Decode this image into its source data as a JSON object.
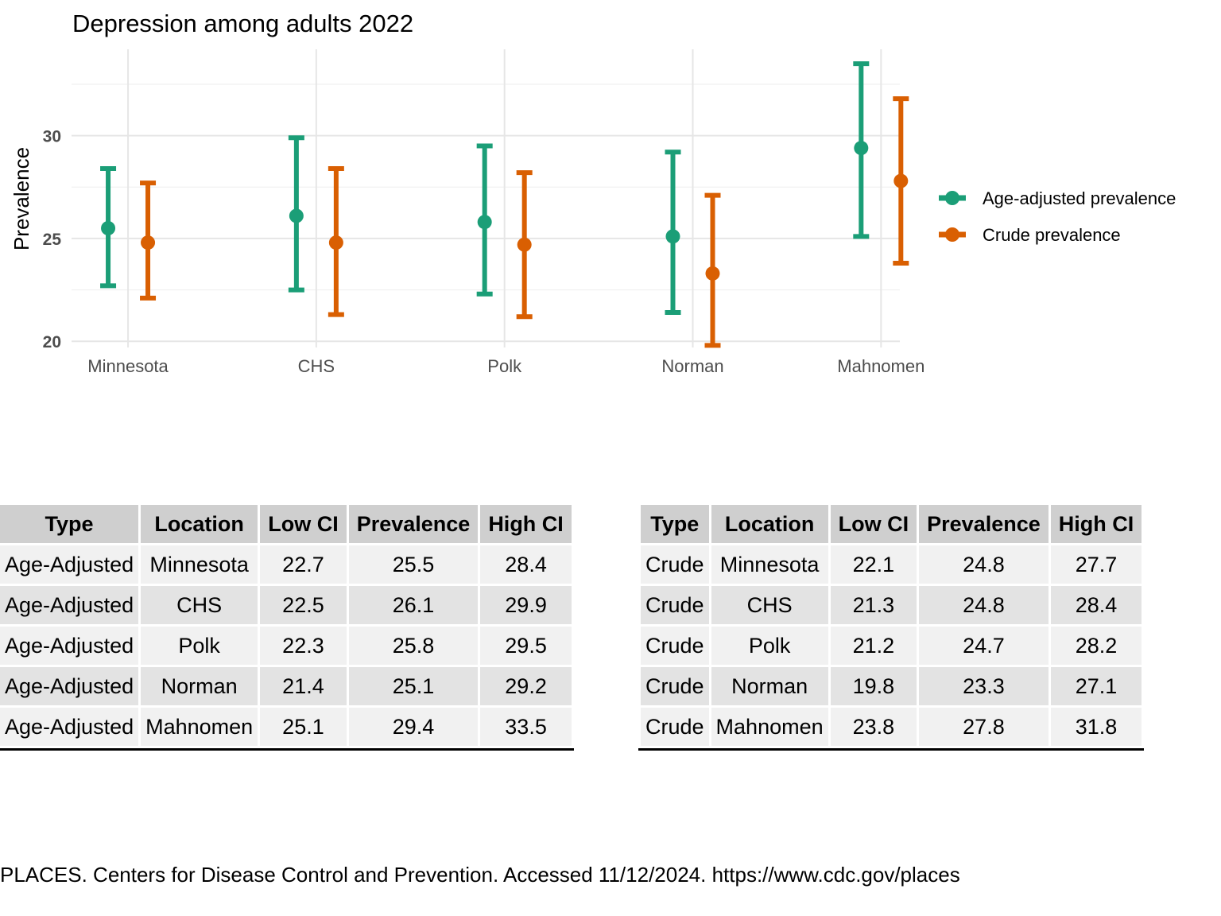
{
  "chart_data": {
    "type": "errorbar",
    "title": "Depression among adults 2022",
    "xlabel": "",
    "ylabel": "Prevalence",
    "categories": [
      "Minnesota",
      "CHS",
      "Polk",
      "Norman",
      "Mahnomen"
    ],
    "ylim": [
      19.7,
      34.2
    ],
    "yticks": [
      20,
      25,
      30
    ],
    "grid": true,
    "legend_position": "right",
    "series": [
      {
        "name": "Age-adjusted prevalence",
        "color": "#1b9e77",
        "values": [
          25.5,
          26.1,
          25.8,
          25.1,
          29.4
        ],
        "low": [
          22.7,
          22.5,
          22.3,
          21.4,
          25.1
        ],
        "high": [
          28.4,
          29.9,
          29.5,
          29.2,
          33.5
        ]
      },
      {
        "name": "Crude prevalence",
        "color": "#d95f02",
        "values": [
          24.8,
          24.8,
          24.7,
          23.3,
          27.8
        ],
        "low": [
          22.1,
          21.3,
          21.2,
          19.8,
          23.8
        ],
        "high": [
          27.7,
          28.4,
          28.2,
          27.1,
          31.8
        ]
      }
    ]
  },
  "tables": {
    "headers": [
      "Type",
      "Location",
      "Low CI",
      "Prevalence",
      "High CI"
    ],
    "age_adjusted": [
      [
        "Age-Adjusted",
        "Minnesota",
        "22.7",
        "25.5",
        "28.4"
      ],
      [
        "Age-Adjusted",
        "CHS",
        "22.5",
        "26.1",
        "29.9"
      ],
      [
        "Age-Adjusted",
        "Polk",
        "22.3",
        "25.8",
        "29.5"
      ],
      [
        "Age-Adjusted",
        "Norman",
        "21.4",
        "25.1",
        "29.2"
      ],
      [
        "Age-Adjusted",
        "Mahnomen",
        "25.1",
        "29.4",
        "33.5"
      ]
    ],
    "crude": [
      [
        "Crude",
        "Minnesota",
        "22.1",
        "24.8",
        "27.7"
      ],
      [
        "Crude",
        "CHS",
        "21.3",
        "24.8",
        "28.4"
      ],
      [
        "Crude",
        "Polk",
        "21.2",
        "24.7",
        "28.2"
      ],
      [
        "Crude",
        "Norman",
        "19.8",
        "23.3",
        "27.1"
      ],
      [
        "Crude",
        "Mahnomen",
        "23.8",
        "27.8",
        "31.8"
      ]
    ]
  },
  "citation": "PLACES. Centers for Disease Control and Prevention. Accessed 11/12/2024. https://www.cdc.gov/places"
}
